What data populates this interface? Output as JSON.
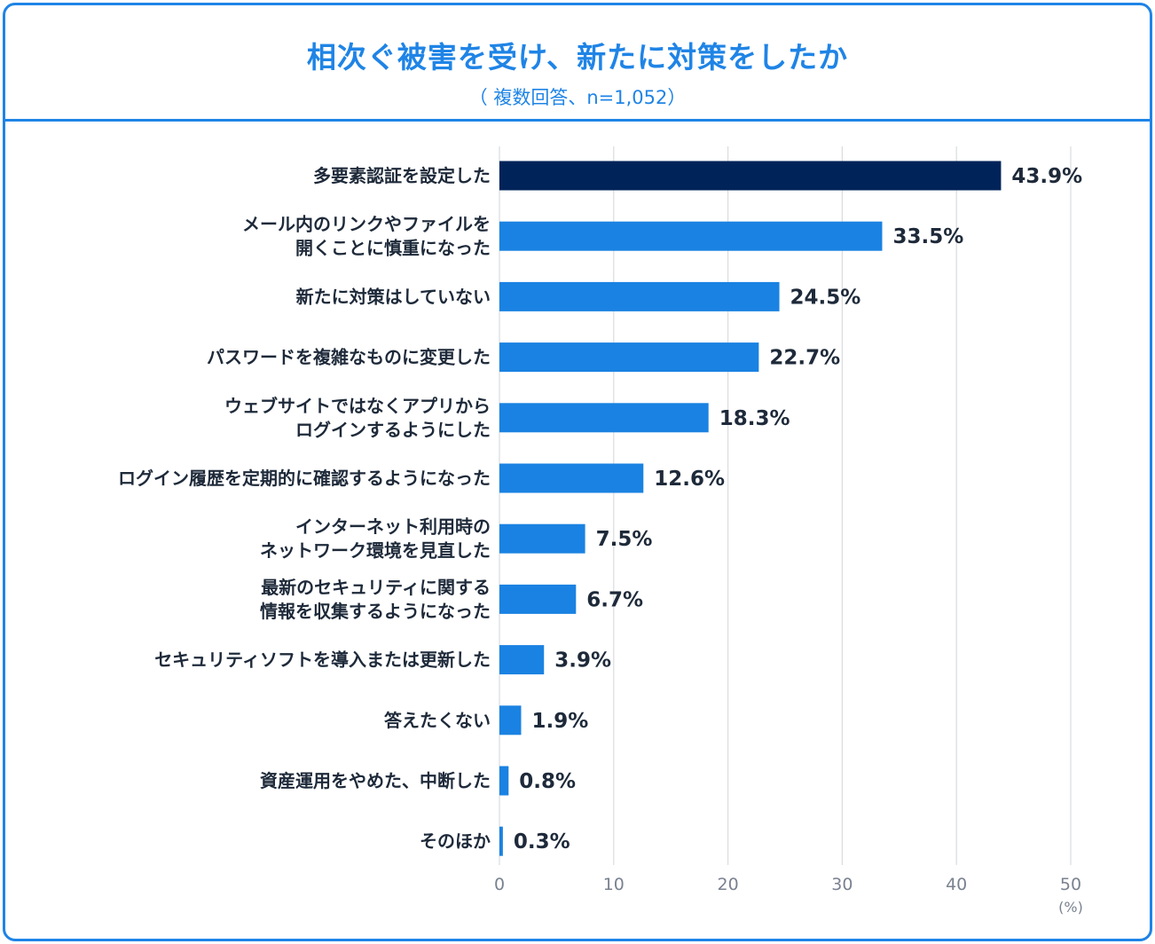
{
  "header": {
    "title": "相次ぐ被害を受け、新たに対策をしたか",
    "subtitle": "（ 複数回答、n=1,052）"
  },
  "colors": {
    "frame": "#1f84e6",
    "bar": "#1a82e2",
    "highlight_bar": "#00245a",
    "grid": "#d9dcdf",
    "text": "#1e2a3a",
    "tick": "#7a8290"
  },
  "chart_data": {
    "type": "bar",
    "orientation": "horizontal",
    "title": "相次ぐ被害を受け、新たに対策をしたか",
    "subtitle": "（ 複数回答、n=1,052）",
    "unit": "(%)",
    "xlim": [
      0,
      50
    ],
    "ticks": [
      0,
      10,
      20,
      30,
      40,
      50
    ],
    "grid": true,
    "categories": [
      [
        "多要素認証を設定した"
      ],
      [
        "メール内のリンクやファイルを",
        "開くことに慎重になった"
      ],
      [
        "新たに対策はしていない"
      ],
      [
        "パスワードを複雑なものに変更した"
      ],
      [
        "ウェブサイトではなくアプリから",
        "ログインするようにした"
      ],
      [
        "ログイン履歴を定期的に確認するようになった"
      ],
      [
        "インターネット利用時の",
        "ネットワーク環境を見直した"
      ],
      [
        "最新のセキュリティに関する",
        "情報を収集するようになった"
      ],
      [
        "セキュリティソフトを導入または更新した"
      ],
      [
        "答えたくない"
      ],
      [
        "資産運用をやめた、中断した"
      ],
      [
        "そのほか"
      ]
    ],
    "values": [
      43.9,
      33.5,
      24.5,
      22.7,
      18.3,
      12.6,
      7.5,
      6.7,
      3.9,
      1.9,
      0.8,
      0.3
    ],
    "value_labels": [
      "43.9%",
      "33.5%",
      "24.5%",
      "22.7%",
      "18.3%",
      "12.6%",
      "7.5%",
      "6.7%",
      "3.9%",
      "1.9%",
      "0.8%",
      "0.3%"
    ],
    "highlight_index": 0
  }
}
